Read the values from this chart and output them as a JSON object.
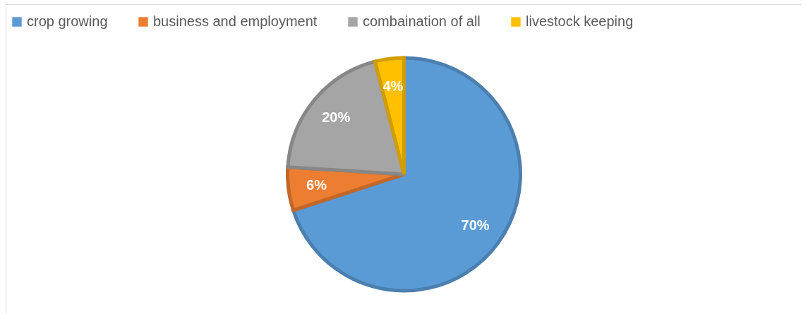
{
  "chart_data": {
    "type": "pie",
    "categories": [
      "crop growing",
      "business and employment",
      "combaination of all",
      "livestock keeping"
    ],
    "values": [
      70,
      6,
      20,
      4
    ],
    "colors": [
      "#5b9bd5",
      "#ed7d31",
      "#a5a5a5",
      "#ffc000"
    ],
    "value_labels": [
      "70%",
      "6%",
      "20%",
      "4%"
    ],
    "legend": "top"
  }
}
